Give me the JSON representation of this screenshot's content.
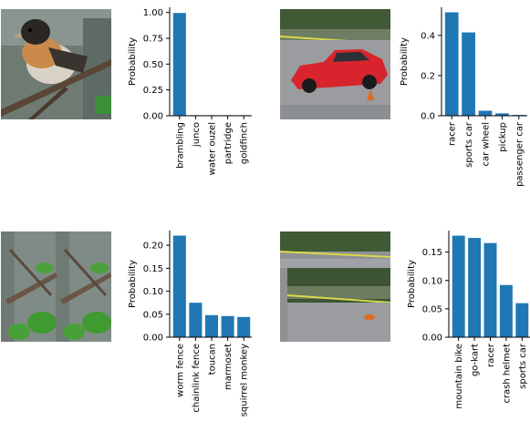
{
  "colors": {
    "bar": "#1f77b4",
    "axis": "#000000"
  },
  "chart_data": [
    {
      "type": "bar",
      "ylabel": "Probability",
      "categories": [
        "brambling",
        "junco",
        "water ouzel",
        "partridge",
        "goldfinch"
      ],
      "values": [
        0.995,
        0.002,
        0.001,
        0.001,
        0.001
      ],
      "ylim": [
        0,
        1.05
      ],
      "yticks": [
        0.0,
        0.25,
        0.5,
        0.75,
        1.0
      ],
      "ytick_labels": [
        "0.00",
        "0.25",
        "0.50",
        "0.75",
        "1.00"
      ],
      "image": "bird-photo",
      "grid": false
    },
    {
      "type": "bar",
      "ylabel": "Probability",
      "categories": [
        "racer",
        "sports car",
        "car wheel",
        "pickup",
        "passenger car"
      ],
      "values": [
        0.515,
        0.415,
        0.025,
        0.012,
        0.004
      ],
      "ylim": [
        0,
        0.54
      ],
      "yticks": [
        0.0,
        0.2,
        0.4
      ],
      "ytick_labels": [
        "0.0",
        "0.2",
        "0.4"
      ],
      "image": "red-car-photo",
      "grid": false
    },
    {
      "type": "bar",
      "ylabel": "Probability",
      "categories": [
        "worm fence",
        "chainlink fence",
        "toucan",
        "marmoset",
        "squirrel monkey"
      ],
      "values": [
        0.221,
        0.075,
        0.048,
        0.046,
        0.044
      ],
      "ylim": [
        0,
        0.232
      ],
      "yticks": [
        0.0,
        0.05,
        0.1,
        0.15,
        0.2
      ],
      "ytick_labels": [
        "0.00",
        "0.05",
        "0.10",
        "0.15",
        "0.20"
      ],
      "image": "tiled-branches-photo",
      "grid": false
    },
    {
      "type": "bar",
      "ylabel": "Probability",
      "categories": [
        "mountain bike",
        "go-kart",
        "racer",
        "crash helmet",
        "sports car"
      ],
      "values": [
        0.179,
        0.175,
        0.166,
        0.092,
        0.06
      ],
      "ylim": [
        0,
        0.188
      ],
      "yticks": [
        0.0,
        0.05,
        0.1,
        0.15
      ],
      "ytick_labels": [
        "0.00",
        "0.05",
        "0.10",
        "0.15"
      ],
      "image": "shifted-track-photo",
      "grid": false
    }
  ]
}
